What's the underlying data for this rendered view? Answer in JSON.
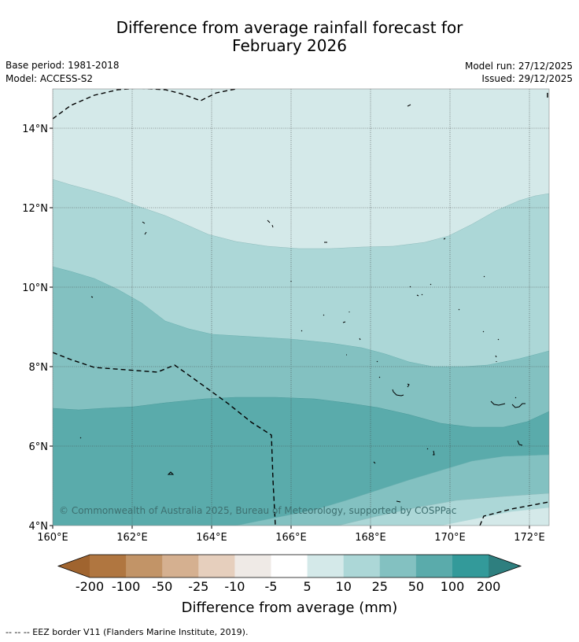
{
  "title": {
    "line1": "Difference from average rainfall forecast for",
    "line2": "February 2026"
  },
  "meta": {
    "base_period": "Base period: 1981-2018",
    "model": "Model: ACCESS-S2",
    "model_run": "Model run: 27/12/2025",
    "issued": "Issued: 29/12/2025"
  },
  "map": {
    "lat_labels": [
      "14°N",
      "12°N",
      "10°N",
      "8°N",
      "6°N",
      "4°N"
    ],
    "lon_labels": [
      "160°E",
      "162°E",
      "164°E",
      "166°E",
      "168°E",
      "170°E",
      "172°E"
    ],
    "copyright": "© Commonwealth of Australia 2025, Bureau of Meteorology, supported by COSPPac"
  },
  "colorbar": {
    "title": "Difference from average (mm)",
    "tick_labels": [
      "-200",
      "-100",
      "-50",
      "-25",
      "-10",
      "-5",
      "5",
      "10",
      "25",
      "50",
      "100",
      "200"
    ],
    "colors": [
      "#a0642f",
      "#b07640",
      "#c29467",
      "#d5b090",
      "#e6cfbd",
      "#efeae6",
      "#ffffff",
      "#d4e9e9",
      "#acd7d7",
      "#83c1c1",
      "#5aabab",
      "#339a9a",
      "#2e7f7f"
    ]
  },
  "footnote": "--  --  -- EEZ border V11 (Flanders Marine Institute, 2019)."
}
